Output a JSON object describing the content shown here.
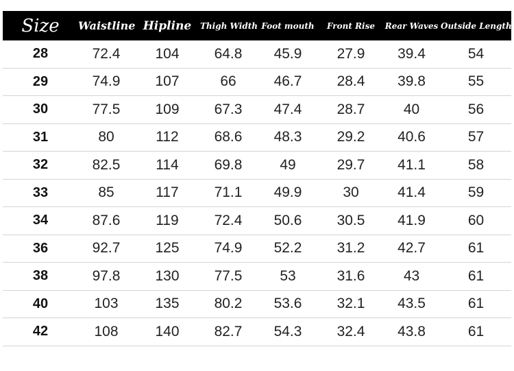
{
  "headers": [
    "Size",
    "Waistline",
    "Hipline",
    "Thigh Width",
    "Foot mouth",
    "Front Rise",
    "Rear Waves",
    "Outside Length"
  ],
  "rows": [
    [
      "28",
      "72.4",
      "104",
      "64.8",
      "45.9",
      "27.9",
      "39.4",
      "54"
    ],
    [
      "29",
      "74.9",
      "107",
      "66",
      "46.7",
      "28.4",
      "39.8",
      "55"
    ],
    [
      "30",
      "77.5",
      "109",
      "67.3",
      "47.4",
      "28.7",
      "40",
      "56"
    ],
    [
      "31",
      "80",
      "112",
      "68.6",
      "48.3",
      "29.2",
      "40.6",
      "57"
    ],
    [
      "32",
      "82.5",
      "114",
      "69.8",
      "49",
      "29.7",
      "41.1",
      "58"
    ],
    [
      "33",
      "85",
      "117",
      "71.1",
      "49.9",
      "30",
      "41.4",
      "59"
    ],
    [
      "34",
      "87.6",
      "119",
      "72.4",
      "50.6",
      "30.5",
      "41.9",
      "60"
    ],
    [
      "36",
      "92.7",
      "125",
      "74.9",
      "52.2",
      "31.2",
      "42.7",
      "61"
    ],
    [
      "38",
      "97.8",
      "130",
      "77.5",
      "53",
      "31.6",
      "43",
      "61"
    ],
    [
      "40",
      "103",
      "135",
      "80.2",
      "53.6",
      "32.1",
      "43.5",
      "61"
    ],
    [
      "42",
      "108",
      "140",
      "82.7",
      "54.3",
      "32.4",
      "43.8",
      "61"
    ]
  ],
  "colors": {
    "header_bg": "#000000",
    "header_text": "#ffffff",
    "row_divider": "#d4d4d4"
  }
}
